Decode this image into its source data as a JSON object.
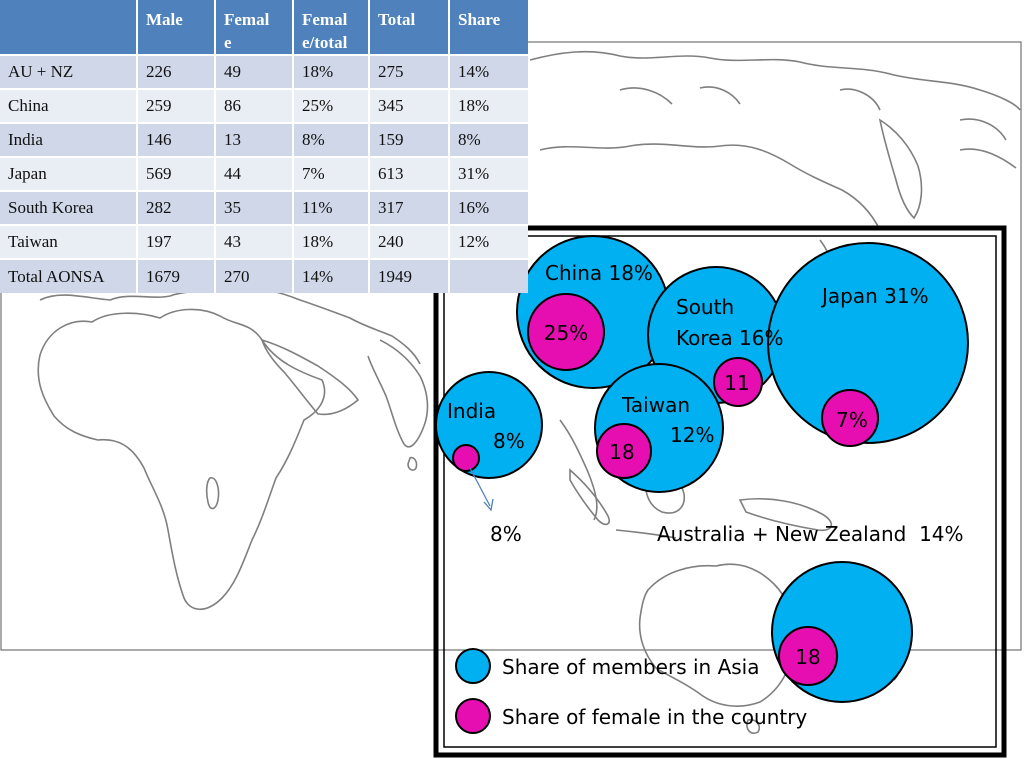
{
  "table": {
    "headers": [
      "",
      "Male",
      "Female",
      "Female/total",
      "Total",
      "Share"
    ],
    "header_display": [
      "",
      "Male",
      "Femal\ne",
      "Femal\ne/total",
      "Total",
      "Share"
    ],
    "rows": [
      [
        "AU + NZ",
        "226",
        "49",
        "18%",
        "275",
        "14%"
      ],
      [
        "China",
        "259",
        "86",
        "25%",
        "345",
        "18%"
      ],
      [
        "India",
        "146",
        "13",
        "8%",
        "159",
        "8%"
      ],
      [
        "Japan",
        "569",
        "44",
        "7%",
        "613",
        "31%"
      ],
      [
        "South Korea",
        "282",
        "35",
        "11%",
        "317",
        "16%"
      ],
      [
        "Taiwan",
        "197",
        "43",
        "18%",
        "240",
        "12%"
      ],
      [
        "Total AONSA",
        "1679",
        "270",
        "14%",
        "1949",
        ""
      ]
    ]
  },
  "chart_data": {
    "type": "bubble",
    "series": [
      {
        "name": "Share of members in Asia",
        "color": "#00b0f0"
      },
      {
        "name": "Share of female in the country",
        "color": "#e60eb0"
      }
    ],
    "regions": [
      {
        "id": "china",
        "label": "China 18%",
        "share": 18,
        "female_label": "25%",
        "female_ratio": 25
      },
      {
        "id": "south-korea",
        "label": "South Korea 16%",
        "label_lines": [
          "South",
          "Korea 16%"
        ],
        "share": 16,
        "female_label": "11",
        "female_ratio": 11
      },
      {
        "id": "japan",
        "label": "Japan 31%",
        "share": 31,
        "female_label": "7%",
        "female_ratio": 7
      },
      {
        "id": "india",
        "label": "India 8%",
        "label_lines": [
          "India",
          "8%"
        ],
        "share": 8,
        "female_label": "",
        "female_ratio": 8,
        "callout": "8%"
      },
      {
        "id": "taiwan",
        "label": "Taiwan 12%",
        "label_lines": [
          "Taiwan",
          "12%"
        ],
        "share": 12,
        "female_label": "18",
        "female_ratio": 18
      },
      {
        "id": "au-nz",
        "label": "Australia + New Zealand  14%",
        "share": 14,
        "female_label": "18",
        "female_ratio": 18
      }
    ]
  },
  "colors": {
    "header_bg": "#4f81bd",
    "row_odd": "#cfd7e8",
    "row_even": "#e9edf4",
    "member_bubble": "#00b0f0",
    "female_bubble": "#e60eb0",
    "coastline": "#808080"
  }
}
